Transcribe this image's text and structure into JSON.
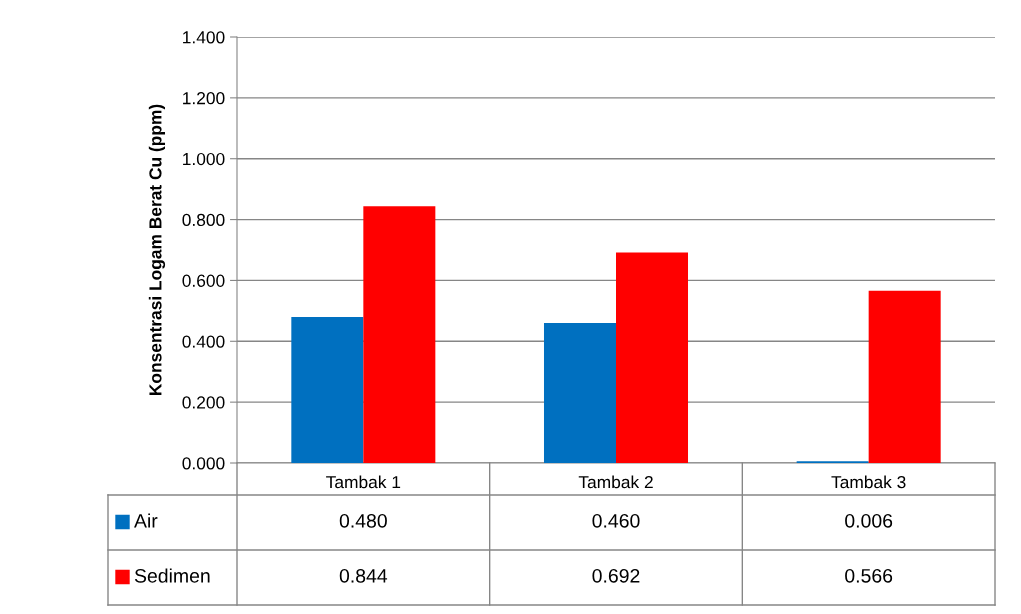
{
  "chart_data": {
    "type": "bar",
    "ylabel": "Konsentrasi Logam Berat Cu (ppm)",
    "categories": [
      "Tambak 1",
      "Tambak 2",
      "Tambak 3"
    ],
    "series": [
      {
        "name": "Air",
        "color": "#0070c0",
        "values": [
          0.48,
          0.46,
          0.006
        ]
      },
      {
        "name": "Sedimen",
        "color": "#ff0000",
        "values": [
          0.844,
          0.692,
          0.566
        ]
      }
    ],
    "ylim": [
      0,
      1.4
    ],
    "yticks": [
      {
        "value": 0,
        "label": "0.000"
      },
      {
        "value": 0.2,
        "label": "0.200"
      },
      {
        "value": 0.4,
        "label": "0.400"
      },
      {
        "value": 0.6,
        "label": "0.600"
      },
      {
        "value": 0.8,
        "label": "0.800"
      },
      {
        "value": 1.0,
        "label": "1.000"
      },
      {
        "value": 1.2,
        "label": "1.200"
      },
      {
        "value": 1.4,
        "label": "1.400"
      }
    ],
    "value_labels": [
      [
        "0.480",
        "0.460",
        "0.006"
      ],
      [
        "0.844",
        "0.692",
        "0.566"
      ]
    ],
    "grid": "y",
    "legend": "bottom"
  }
}
